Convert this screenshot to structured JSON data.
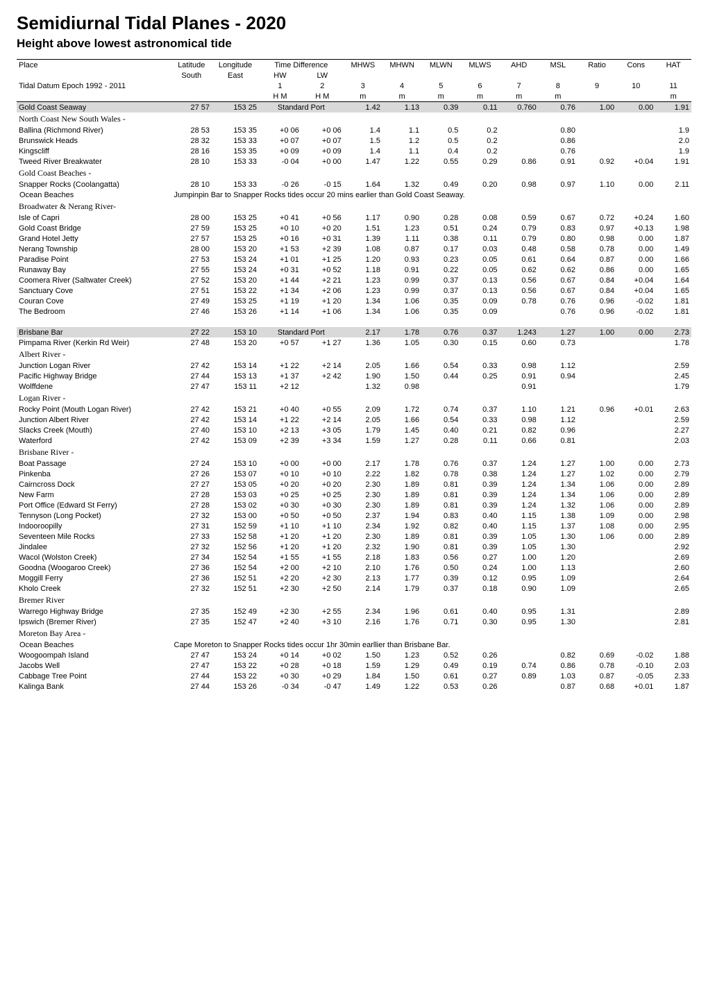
{
  "title": "Semidiurnal Tidal Planes - 2020",
  "subtitle": "Height above lowest astronomical tide",
  "colors": {
    "background": "#ffffff",
    "text": "#000000",
    "shaded_row": "#d9d9d9",
    "border": "#000000"
  },
  "header": {
    "row1": [
      "Place",
      "Latitude",
      "Longitude",
      "Time Difference",
      "",
      "MHWS",
      "MHWN",
      "MLWN",
      "MLWS",
      "AHD",
      "MSL",
      "Ratio",
      "Cons",
      "HAT"
    ],
    "row2": [
      "",
      "South",
      "East",
      "HW",
      "LW",
      "",
      "",
      "",
      "",
      "",
      "",
      "",
      "",
      ""
    ],
    "row3": [
      "Tidal Datum Epoch 1992 - 2011",
      "",
      "",
      "1",
      "2",
      "3",
      "4",
      "5",
      "6",
      "7",
      "8",
      "9",
      "10",
      "11"
    ],
    "row4": [
      "",
      "",
      "",
      "H M",
      "H M",
      "m",
      "m",
      "m",
      "m",
      "m",
      "m",
      "",
      "",
      "m"
    ]
  },
  "rows": [
    {
      "type": "shaded",
      "cells": [
        "Gold Coast Seaway",
        "27 57",
        "153 25",
        "Standard Port",
        "",
        "1.42",
        "1.13",
        "0.39",
        "0.11",
        "0.760",
        "0.76",
        "1.00",
        "0.00",
        "1.91"
      ]
    },
    {
      "type": "section",
      "label": "North Coast New South Wales -"
    },
    {
      "type": "data",
      "cells": [
        "Ballina (Richmond River)",
        "28 53",
        "153 35",
        "+0 06",
        "+0 06",
        "1.4",
        "1.1",
        "0.5",
        "0.2",
        "",
        "0.80",
        "",
        "",
        "1.9"
      ]
    },
    {
      "type": "data",
      "cells": [
        "Brunswick Heads",
        "28 32",
        "153 33",
        "+0 07",
        "+0 07",
        "1.5",
        "1.2",
        "0.5",
        "0.2",
        "",
        "0.86",
        "",
        "",
        "2.0"
      ]
    },
    {
      "type": "data",
      "cells": [
        "Kingscliff",
        "28 16",
        "153 35",
        "+0 09",
        "+0 09",
        "1.4",
        "1.1",
        "0.4",
        "0.2",
        "",
        "0.76",
        "",
        "",
        "1.9"
      ]
    },
    {
      "type": "data",
      "cells": [
        "Tweed River Breakwater",
        "28 10",
        "153 33",
        "-0 04",
        "+0 00",
        "1.47",
        "1.22",
        "0.55",
        "0.29",
        "0.86",
        "0.91",
        "0.92",
        "+0.04",
        "1.91"
      ]
    },
    {
      "type": "section",
      "label": "Gold Coast Beaches -"
    },
    {
      "type": "data",
      "cells": [
        "Snapper Rocks (Coolangatta)",
        "28 10",
        "153 33",
        "-0 26",
        "-0 15",
        "1.64",
        "1.32",
        "0.49",
        "0.20",
        "0.98",
        "0.97",
        "1.10",
        "0.00",
        "2.11"
      ]
    },
    {
      "type": "span",
      "cells": [
        "Ocean Beaches",
        "Jumpinpin Bar to Snapper Rocks tides occur 20 mins earlier than Gold Coast Seaway."
      ]
    },
    {
      "type": "section",
      "label": "Broadwater & Nerang River-"
    },
    {
      "type": "data",
      "cells": [
        "Isle of Capri",
        "28 00",
        "153 25",
        "+0 41",
        "+0 56",
        "1.17",
        "0.90",
        "0.28",
        "0.08",
        "0.59",
        "0.67",
        "0.72",
        "+0.24",
        "1.60"
      ]
    },
    {
      "type": "data",
      "cells": [
        "Gold Coast Bridge",
        "27 59",
        "153 25",
        "+0 10",
        "+0 20",
        "1.51",
        "1.23",
        "0.51",
        "0.24",
        "0.79",
        "0.83",
        "0.97",
        "+0.13",
        "1.98"
      ]
    },
    {
      "type": "data",
      "cells": [
        "Grand Hotel Jetty",
        "27 57",
        "153 25",
        "+0 16",
        "+0 31",
        "1.39",
        "1.11",
        "0.38",
        "0.11",
        "0.79",
        "0.80",
        "0.98",
        "0.00",
        "1.87"
      ]
    },
    {
      "type": "data",
      "cells": [
        "Nerang Township",
        "28 00",
        "153 20",
        "+1 53",
        "+2 39",
        "1.08",
        "0.87",
        "0.17",
        "0.03",
        "0.48",
        "0.58",
        "0.78",
        "0.00",
        "1.49"
      ]
    },
    {
      "type": "data",
      "cells": [
        "Paradise Point",
        "27 53",
        "153 24",
        "+1 01",
        "+1 25",
        "1.20",
        "0.93",
        "0.23",
        "0.05",
        "0.61",
        "0.64",
        "0.87",
        "0.00",
        "1.66"
      ]
    },
    {
      "type": "data",
      "cells": [
        "Runaway Bay",
        "27 55",
        "153 24",
        "+0 31",
        "+0 52",
        "1.18",
        "0.91",
        "0.22",
        "0.05",
        "0.62",
        "0.62",
        "0.86",
        "0.00",
        "1.65"
      ]
    },
    {
      "type": "data",
      "cells": [
        "Coomera River (Saltwater Creek)",
        "27 52",
        "153 20",
        "+1 44",
        "+2 21",
        "1.23",
        "0.99",
        "0.37",
        "0.13",
        "0.56",
        "0.67",
        "0.84",
        "+0.04",
        "1.64"
      ]
    },
    {
      "type": "data",
      "cells": [
        "Sanctuary Cove",
        "27 51",
        "153 22",
        "+1 34",
        "+2 06",
        "1.23",
        "0.99",
        "0.37",
        "0.13",
        "0.56",
        "0.67",
        "0.84",
        "+0.04",
        "1.65"
      ]
    },
    {
      "type": "data",
      "cells": [
        "Couran Cove",
        "27 49",
        "153 25",
        "+1 19",
        "+1 20",
        "1.34",
        "1.06",
        "0.35",
        "0.09",
        "0.78",
        "0.76",
        "0.96",
        "-0.02",
        "1.81"
      ]
    },
    {
      "type": "data",
      "cells": [
        "The Bedroom",
        "27 46",
        "153 26",
        "+1 14",
        "+1 06",
        "1.34",
        "1.06",
        "0.35",
        "0.09",
        "",
        "0.76",
        "0.96",
        "-0.02",
        "1.81"
      ]
    },
    {
      "type": "blank"
    },
    {
      "type": "shaded",
      "cells": [
        "Brisbane Bar",
        "27 22",
        "153 10",
        "Standard Port",
        "",
        "2.17",
        "1.78",
        "0.76",
        "0.37",
        "1.243",
        "1.27",
        "1.00",
        "0.00",
        "2.73"
      ]
    },
    {
      "type": "data",
      "cells": [
        "Pimpama River (Kerkin Rd Weir)",
        "27 48",
        "153 20",
        "+0 57",
        "+1 27",
        "1.36",
        "1.05",
        "0.30",
        "0.15",
        "0.60",
        "0.73",
        "",
        "",
        "1.78"
      ]
    },
    {
      "type": "section",
      "label": "Albert River -"
    },
    {
      "type": "data",
      "cells": [
        "Junction Logan River",
        "27 42",
        "153 14",
        "+1 22",
        "+2 14",
        "2.05",
        "1.66",
        "0.54",
        "0.33",
        "0.98",
        "1.12",
        "",
        "",
        "2.59"
      ]
    },
    {
      "type": "data",
      "cells": [
        "Pacific Highway Bridge",
        "27 44",
        "153 13",
        "+1 37",
        "+2 42",
        "1.90",
        "1.50",
        "0.44",
        "0.25",
        "0.91",
        "0.94",
        "",
        "",
        "2.45"
      ]
    },
    {
      "type": "data",
      "cells": [
        "Wolffdene",
        "27 47",
        "153 11",
        "+2 12",
        "",
        "1.32",
        "0.98",
        "",
        "",
        "0.91",
        "",
        "",
        "",
        "1.79"
      ]
    },
    {
      "type": "section",
      "label": "Logan River -"
    },
    {
      "type": "data",
      "cells": [
        "Rocky Point (Mouth Logan River)",
        "27 42",
        "153 21",
        "+0 40",
        "+0 55",
        "2.09",
        "1.72",
        "0.74",
        "0.37",
        "1.10",
        "1.21",
        "0.96",
        "+0.01",
        "2.63"
      ]
    },
    {
      "type": "data",
      "cells": [
        "Junction Albert River",
        "27 42",
        "153 14",
        "+1 22",
        "+2 14",
        "2.05",
        "1.66",
        "0.54",
        "0.33",
        "0.98",
        "1.12",
        "",
        "",
        "2.59"
      ]
    },
    {
      "type": "data",
      "cells": [
        "Slacks Creek (Mouth)",
        "27 40",
        "153 10",
        "+2 13",
        "+3 05",
        "1.79",
        "1.45",
        "0.40",
        "0.21",
        "0.82",
        "0.96",
        "",
        "",
        "2.27"
      ]
    },
    {
      "type": "data",
      "cells": [
        "Waterford",
        "27 42",
        "153 09",
        "+2 39",
        "+3 34",
        "1.59",
        "1.27",
        "0.28",
        "0.11",
        "0.66",
        "0.81",
        "",
        "",
        "2.03"
      ]
    },
    {
      "type": "section",
      "label": "Brisbane River -"
    },
    {
      "type": "data",
      "cells": [
        "Boat Passage",
        "27 24",
        "153 10",
        "+0 00",
        "+0 00",
        "2.17",
        "1.78",
        "0.76",
        "0.37",
        "1.24",
        "1.27",
        "1.00",
        "0.00",
        "2.73"
      ]
    },
    {
      "type": "data",
      "cells": [
        "Pinkenba",
        "27 26",
        "153 07",
        "+0 10",
        "+0 10",
        "2.22",
        "1.82",
        "0.78",
        "0.38",
        "1.24",
        "1.27",
        "1.02",
        "0.00",
        "2.79"
      ]
    },
    {
      "type": "data",
      "cells": [
        "Cairncross Dock",
        "27 27",
        "153 05",
        "+0 20",
        "+0 20",
        "2.30",
        "1.89",
        "0.81",
        "0.39",
        "1.24",
        "1.34",
        "1.06",
        "0.00",
        "2.89"
      ]
    },
    {
      "type": "data",
      "cells": [
        "New Farm",
        "27 28",
        "153 03",
        "+0 25",
        "+0 25",
        "2.30",
        "1.89",
        "0.81",
        "0.39",
        "1.24",
        "1.34",
        "1.06",
        "0.00",
        "2.89"
      ]
    },
    {
      "type": "data",
      "cells": [
        "Port Office (Edward St Ferry)",
        "27 28",
        "153 02",
        "+0 30",
        "+0 30",
        "2.30",
        "1.89",
        "0.81",
        "0.39",
        "1.24",
        "1.32",
        "1.06",
        "0.00",
        "2.89"
      ]
    },
    {
      "type": "data",
      "cells": [
        "Tennyson (Long Pocket)",
        "27 32",
        "153 00",
        "+0 50",
        "+0 50",
        "2.37",
        "1.94",
        "0.83",
        "0.40",
        "1.15",
        "1.38",
        "1.09",
        "0.00",
        "2.98"
      ]
    },
    {
      "type": "data",
      "cells": [
        "Indooroopilly",
        "27 31",
        "152 59",
        "+1 10",
        "+1 10",
        "2.34",
        "1.92",
        "0.82",
        "0.40",
        "1.15",
        "1.37",
        "1.08",
        "0.00",
        "2.95"
      ]
    },
    {
      "type": "data",
      "cells": [
        "Seventeen Mile Rocks",
        "27 33",
        "152 58",
        "+1 20",
        "+1 20",
        "2.30",
        "1.89",
        "0.81",
        "0.39",
        "1.05",
        "1.30",
        "1.06",
        "0.00",
        "2.89"
      ]
    },
    {
      "type": "data",
      "cells": [
        "Jindalee",
        "27 32",
        "152 56",
        "+1 20",
        "+1 20",
        "2.32",
        "1.90",
        "0.81",
        "0.39",
        "1.05",
        "1.30",
        "",
        "",
        "2.92"
      ]
    },
    {
      "type": "data",
      "cells": [
        "Wacol (Wolston Creek)",
        "27 34",
        "152 54",
        "+1 55",
        "+1 55",
        "2.18",
        "1.83",
        "0.56",
        "0.27",
        "1.00",
        "1.20",
        "",
        "",
        "2.69"
      ]
    },
    {
      "type": "data",
      "cells": [
        "Goodna (Woogaroo Creek)",
        "27 36",
        "152 54",
        "+2 00",
        "+2 10",
        "2.10",
        "1.76",
        "0.50",
        "0.24",
        "1.00",
        "1.13",
        "",
        "",
        "2.60"
      ]
    },
    {
      "type": "data",
      "cells": [
        "Moggill Ferry",
        "27 36",
        "152 51",
        "+2 20",
        "+2 30",
        "2.13",
        "1.77",
        "0.39",
        "0.12",
        "0.95",
        "1.09",
        "",
        "",
        "2.64"
      ]
    },
    {
      "type": "data",
      "cells": [
        "Kholo Creek",
        "27 32",
        "152 51",
        "+2 30",
        "+2 50",
        "2.14",
        "1.79",
        "0.37",
        "0.18",
        "0.90",
        "1.09",
        "",
        "",
        "2.65"
      ]
    },
    {
      "type": "section",
      "label": "Bremer River"
    },
    {
      "type": "data",
      "cells": [
        "Warrego Highway Bridge",
        "27 35",
        "152 49",
        "+2 30",
        "+2 55",
        "2.34",
        "1.96",
        "0.61",
        "0.40",
        "0.95",
        "1.31",
        "",
        "",
        "2.89"
      ]
    },
    {
      "type": "data",
      "cells": [
        "Ipswich (Bremer River)",
        "27 35",
        "152 47",
        "+2 40",
        "+3 10",
        "2.16",
        "1.76",
        "0.71",
        "0.30",
        "0.95",
        "1.30",
        "",
        "",
        "2.81"
      ]
    },
    {
      "type": "section",
      "label": "Moreton Bay Area -"
    },
    {
      "type": "span",
      "cells": [
        "Ocean Beaches",
        "Cape Moreton to Snapper Rocks tides occur 1hr 30min earllier than Brisbane Bar."
      ]
    },
    {
      "type": "data",
      "cells": [
        "Woogoompah Island",
        "27 47",
        "153 24",
        "+0 14",
        "+0 02",
        "1.50",
        "1.23",
        "0.52",
        "0.26",
        "",
        "0.82",
        "0.69",
        "-0.02",
        "1.88"
      ]
    },
    {
      "type": "data",
      "cells": [
        "Jacobs Well",
        "27 47",
        "153 22",
        "+0 28",
        "+0 18",
        "1.59",
        "1.29",
        "0.49",
        "0.19",
        "0.74",
        "0.86",
        "0.78",
        "-0.10",
        "2.03"
      ]
    },
    {
      "type": "data",
      "cells": [
        "Cabbage Tree Point",
        "27 44",
        "153 22",
        "+0 30",
        "+0 29",
        "1.84",
        "1.50",
        "0.61",
        "0.27",
        "0.89",
        "1.03",
        "0.87",
        "-0.05",
        "2.33"
      ]
    },
    {
      "type": "data",
      "cells": [
        "Kalinga Bank",
        "27 44",
        "153 26",
        "-0 34",
        "-0 47",
        "1.49",
        "1.22",
        "0.53",
        "0.26",
        "",
        "0.87",
        "0.68",
        "+0.01",
        "1.87"
      ]
    }
  ]
}
